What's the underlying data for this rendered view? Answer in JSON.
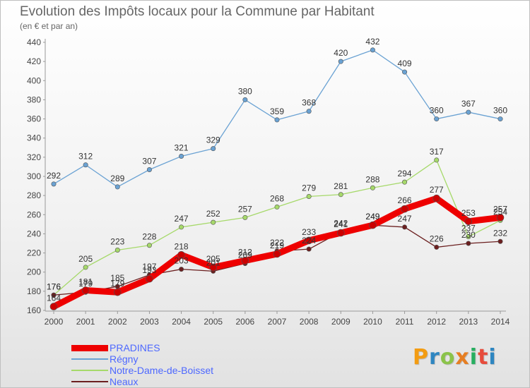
{
  "title": "Evolution des Impôts locaux pour la Commune par Habitant",
  "subtitle": "(en € et par an)",
  "logo": {
    "text": "Proxiti",
    "letters": [
      {
        "ch": "P",
        "color": "#f39c12"
      },
      {
        "ch": "r",
        "color": "#2e86c1"
      },
      {
        "ch": "o",
        "color": "#8bc34a"
      },
      {
        "ch": "x",
        "color": "#e67e22"
      },
      {
        "ch": "i",
        "color": "#27ae60"
      },
      {
        "ch": "t",
        "color": "#e74c3c"
      },
      {
        "ch": "i",
        "color": "#2e86c1"
      }
    ]
  },
  "chart_data": {
    "type": "line",
    "title": "Evolution des Impôts locaux pour la Commune par Habitant",
    "subtitle": "(en € et par an)",
    "x": [
      "2000",
      "2001",
      "2002",
      "2003",
      "2004",
      "2005",
      "2006",
      "2007",
      "2008",
      "2009",
      "2010",
      "2011",
      "2012",
      "2013",
      "2014"
    ],
    "ylim": [
      160,
      440
    ],
    "yticks": [
      160,
      180,
      200,
      220,
      240,
      260,
      280,
      300,
      320,
      340,
      360,
      380,
      400,
      420,
      440
    ],
    "grid": false,
    "legend_position": "bottom-left",
    "series": [
      {
        "name": "PRADINES",
        "color": "#ee0000",
        "width": 9,
        "values": [
          164,
          181,
          179,
          193,
          218,
          205,
          212,
          219,
          233,
          241,
          249,
          266,
          277,
          253,
          257
        ]
      },
      {
        "name": "Régny",
        "color": "#6aa2d3",
        "width": 1.3,
        "values": [
          292,
          312,
          289,
          307,
          321,
          329,
          380,
          359,
          368,
          420,
          432,
          409,
          360,
          367,
          360
        ]
      },
      {
        "name": "Notre-Dame-de-Boisset",
        "color": "#a6d96a",
        "width": 1.3,
        "values": [
          176,
          205,
          223,
          228,
          247,
          252,
          257,
          268,
          279,
          281,
          288,
          294,
          317,
          237,
          254
        ]
      },
      {
        "name": "Neaux",
        "color": "#6b1f1f",
        "width": 1.3,
        "values": [
          176,
          179,
          185,
          197,
          203,
          201,
          209,
          222,
          224,
          242,
          249,
          247,
          226,
          230,
          232
        ]
      }
    ]
  }
}
